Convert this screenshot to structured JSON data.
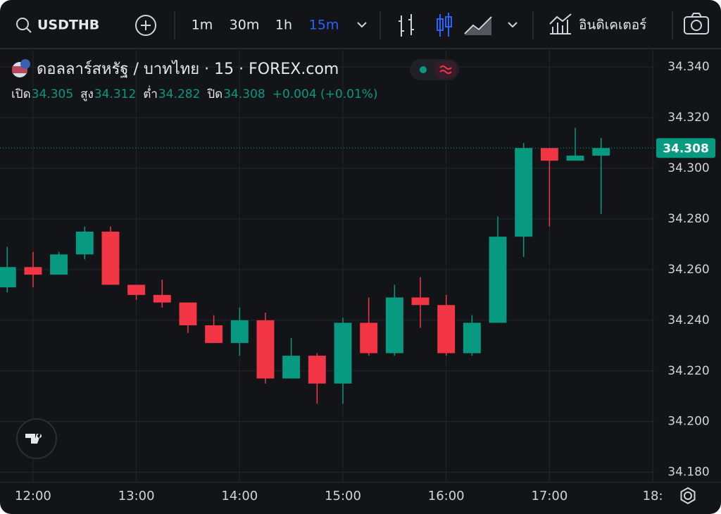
{
  "toolbar": {
    "symbol": "USDTHB",
    "intervals": [
      "1m",
      "30m",
      "1h",
      "15m"
    ],
    "indicators": "อินดิเคเตอร์"
  },
  "chart_data": {
    "type": "candlestick",
    "title": "ดอลลาร์สหรัฐ / บาทไทย · 15 · FOREX.com",
    "ohlc_labels": [
      "เปิด",
      "สูง",
      "ต่ำ",
      "ปิด"
    ],
    "change_label": "+0.004 (+0.01%)",
    "x": [
      11.75,
      12,
      12.25,
      12.5,
      12.75,
      13,
      13.25,
      13.5,
      13.75,
      14,
      14.25,
      14.5,
      14.75,
      15,
      15.25,
      15.5,
      15.75,
      16,
      16.25,
      16.5,
      16.75,
      17,
      17.25,
      17.5
    ],
    "open": [
      34.253,
      34.261,
      34.258,
      34.266,
      34.275,
      34.254,
      34.25,
      34.247,
      34.238,
      34.231,
      34.24,
      34.217,
      34.226,
      34.215,
      34.239,
      34.227,
      34.249,
      34.246,
      34.227,
      34.239,
      34.273,
      34.308,
      34.303,
      34.305
    ],
    "high": [
      34.269,
      34.267,
      34.267,
      34.277,
      34.277,
      34.254,
      34.256,
      34.247,
      34.242,
      34.245,
      34.243,
      34.233,
      34.227,
      34.241,
      34.249,
      34.254,
      34.257,
      34.25,
      34.242,
      34.281,
      34.31,
      34.308,
      34.316,
      34.312
    ],
    "low": [
      34.251,
      34.253,
      34.258,
      34.264,
      34.254,
      34.248,
      34.245,
      34.235,
      34.231,
      34.226,
      34.215,
      34.217,
      34.207,
      34.207,
      34.226,
      34.226,
      34.237,
      34.226,
      34.226,
      34.239,
      34.265,
      34.277,
      34.303,
      34.282
    ],
    "close": [
      34.261,
      34.258,
      34.266,
      34.275,
      34.254,
      34.25,
      34.247,
      34.238,
      34.231,
      34.24,
      34.217,
      34.226,
      34.215,
      34.239,
      34.227,
      34.249,
      34.246,
      34.227,
      34.239,
      34.273,
      34.308,
      34.303,
      34.305,
      34.308
    ],
    "up_color": "#089981",
    "down_color": "#f23645",
    "xlim": [
      11.68,
      18.02
    ],
    "xticks": [
      {
        "value": 12,
        "label": "12:00"
      },
      {
        "value": 13,
        "label": "13:00"
      },
      {
        "value": 14,
        "label": "14:00"
      },
      {
        "value": 15,
        "label": "15:00"
      },
      {
        "value": 16,
        "label": "16:00"
      },
      {
        "value": 17,
        "label": "17:00"
      },
      {
        "value": 18,
        "label": "18:"
      }
    ],
    "ylim": [
      34.176,
      34.347
    ],
    "yticks": [
      {
        "value": 34.18,
        "label": "34.180"
      },
      {
        "value": 34.2,
        "label": "34.200"
      },
      {
        "value": 34.22,
        "label": "34.220"
      },
      {
        "value": 34.24,
        "label": "34.240"
      },
      {
        "value": 34.26,
        "label": "34.260"
      },
      {
        "value": 34.28,
        "label": "34.280"
      },
      {
        "value": 34.3,
        "label": "34.300"
      },
      {
        "value": 34.32,
        "label": "34.320"
      },
      {
        "value": 34.34,
        "label": "34.340"
      }
    ],
    "grid": true
  }
}
